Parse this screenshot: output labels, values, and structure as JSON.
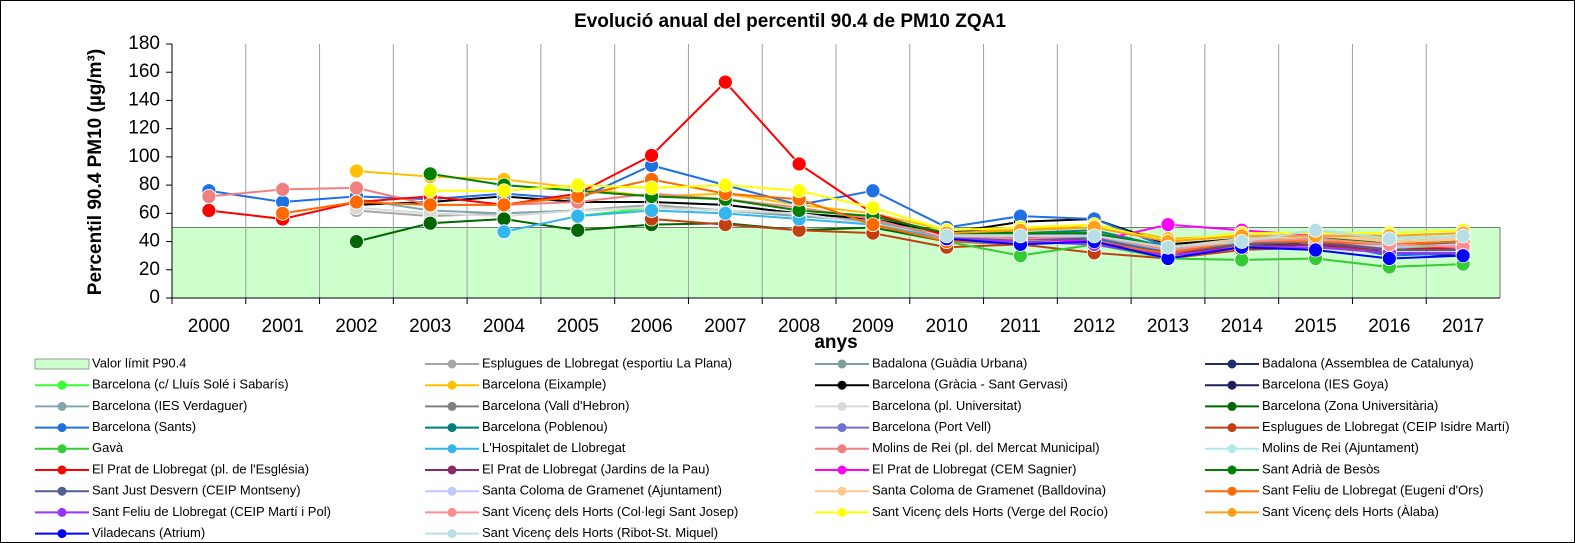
{
  "chart_data": {
    "type": "line",
    "title": "Evolució anual del percentil 90.4 de PM10 ZQA1",
    "x_label": "anys",
    "y_label": "Percentil 90.4 PM10 (µg/m³)",
    "categories": [
      "2000",
      "2001",
      "2002",
      "2003",
      "2004",
      "2005",
      "2006",
      "2007",
      "2008",
      "2009",
      "2010",
      "2011",
      "2012",
      "2013",
      "2014",
      "2015",
      "2016",
      "2017"
    ],
    "ylim": [
      0,
      180
    ],
    "yticks": [
      0,
      20,
      40,
      60,
      80,
      100,
      120,
      140,
      160,
      180
    ],
    "series": [
      {
        "name": "Valor límit P90.4",
        "type": "area",
        "color": "#ccffcc",
        "values": [
          50,
          50,
          50,
          50,
          50,
          50,
          50,
          50,
          50,
          50,
          50,
          50,
          50,
          50,
          50,
          50,
          50,
          50
        ]
      },
      {
        "name": "Esplugues de Llobregat (esportiu La Plana)",
        "color": "#a6a6a6",
        "values": [
          null,
          null,
          62,
          58,
          60,
          62,
          66,
          62,
          58,
          55,
          42,
          40,
          40,
          30,
          36,
          38,
          36,
          38
        ]
      },
      {
        "name": "Badalona (Guàdia Urbana)",
        "color": "#7f9f9f",
        "values": [
          null,
          null,
          null,
          null,
          null,
          null,
          null,
          null,
          null,
          null,
          44,
          44,
          44,
          36,
          40,
          42,
          38,
          38
        ]
      },
      {
        "name": "Badalona (Assemblea de Catalunya)",
        "color": "#1f2a6e",
        "values": [
          null,
          null,
          null,
          null,
          null,
          null,
          null,
          null,
          null,
          null,
          42,
          44,
          46,
          32,
          38,
          40,
          34,
          36
        ]
      },
      {
        "name": "Barcelona (c/ Lluís Solé i Sabarís)",
        "color": "#33ff33",
        "values": [
          null,
          null,
          null,
          null,
          null,
          58,
          64,
          62,
          60,
          56,
          44,
          40,
          42,
          34,
          38,
          40,
          36,
          36
        ]
      },
      {
        "name": "Barcelona (Eixample)",
        "color": "#ffc000",
        "values": [
          null,
          null,
          90,
          86,
          84,
          78,
          72,
          74,
          66,
          60,
          48,
          48,
          52,
          42,
          44,
          44,
          42,
          44
        ]
      },
      {
        "name": "Barcelona (Gràcia - Sant Gervasi)",
        "color": "#000000",
        "values": [
          null,
          null,
          66,
          68,
          72,
          68,
          68,
          66,
          60,
          56,
          46,
          54,
          56,
          38,
          42,
          44,
          40,
          42
        ]
      },
      {
        "name": "Barcelona (IES Goya)",
        "color": "#1f1f5f",
        "values": [
          null,
          null,
          null,
          null,
          null,
          null,
          null,
          null,
          null,
          null,
          48,
          46,
          44,
          34,
          38,
          38,
          32,
          30
        ]
      },
      {
        "name": "Barcelona (IES Verdaguer)",
        "color": "#7fa7b0",
        "values": [
          null,
          null,
          70,
          62,
          60,
          62,
          64,
          62,
          58,
          54,
          44,
          44,
          44,
          34,
          38,
          40,
          34,
          34
        ]
      },
      {
        "name": "Barcelona (Vall d'Hebron)",
        "color": "#7f7f7f",
        "values": [
          null,
          null,
          null,
          null,
          null,
          null,
          null,
          null,
          null,
          null,
          40,
          38,
          40,
          30,
          36,
          38,
          36,
          39
        ]
      },
      {
        "name": "Barcelona (pl. Universitat)",
        "color": "#d9d9d9",
        "values": [
          null,
          null,
          64,
          60,
          58,
          62,
          64,
          62,
          60,
          52,
          44,
          42,
          42,
          34,
          40,
          46,
          40,
          42
        ]
      },
      {
        "name": "Barcelona (Zona Universitària)",
        "color": "#006600",
        "values": [
          null,
          null,
          40,
          53,
          56,
          48,
          52,
          53,
          48,
          50,
          40,
          42,
          44,
          30,
          36,
          38,
          36,
          38
        ]
      },
      {
        "name": "Barcelona (Sants)",
        "color": "#1f6fe5",
        "values": [
          76,
          68,
          72,
          70,
          74,
          70,
          94,
          80,
          66,
          76,
          50,
          58,
          56,
          36,
          40,
          40,
          30,
          32
        ]
      },
      {
        "name": "Barcelona (Poblenou)",
        "color": "#007f7f",
        "values": [
          null,
          null,
          null,
          null,
          null,
          null,
          null,
          null,
          null,
          null,
          46,
          46,
          48,
          36,
          40,
          42,
          38,
          38
        ]
      },
      {
        "name": "Barcelona (Port Vell)",
        "color": "#6f6fcf",
        "values": [
          null,
          null,
          null,
          null,
          null,
          null,
          null,
          null,
          null,
          null,
          42,
          44,
          46,
          36,
          40,
          40,
          34,
          36
        ]
      },
      {
        "name": "Esplugues de Llobregat (CEIP Isidre Martí)",
        "color": "#c0400f",
        "values": [
          null,
          null,
          null,
          null,
          null,
          null,
          56,
          52,
          48,
          46,
          36,
          38,
          32,
          28,
          34,
          36,
          34,
          34
        ]
      },
      {
        "name": "Gavà",
        "color": "#33cc33",
        "values": [
          null,
          null,
          null,
          null,
          null,
          null,
          null,
          null,
          null,
          null,
          40,
          30,
          38,
          28,
          27,
          28,
          22,
          24
        ]
      },
      {
        "name": "L'Hospitalet de Llobregat",
        "color": "#33b5ee",
        "values": [
          null,
          null,
          null,
          null,
          47,
          58,
          62,
          60,
          56,
          52,
          42,
          44,
          42,
          34,
          38,
          40,
          36,
          38
        ]
      },
      {
        "name": "Molins de Rei (pl. del Mercat Municipal)",
        "color": "#f08080",
        "values": [
          72,
          77,
          78,
          66,
          66,
          68,
          74,
          70,
          64,
          56,
          42,
          42,
          40,
          32,
          38,
          40,
          36,
          38
        ]
      },
      {
        "name": "Molins de Rei (Ajuntament)",
        "color": "#b0e8e8",
        "values": [
          null,
          null,
          null,
          null,
          null,
          null,
          null,
          null,
          null,
          null,
          44,
          46,
          46,
          36,
          42,
          48,
          44,
          42
        ]
      },
      {
        "name": "El Prat de Llobregat (pl. de l'Església)",
        "color": "#ff0000",
        "values": [
          62,
          56,
          68,
          72,
          66,
          74,
          101,
          153,
          95,
          60,
          44,
          44,
          40,
          30,
          38,
          40,
          34,
          36
        ]
      },
      {
        "name": "El Prat de Llobregat (Jardins de la Pau)",
        "color": "#8b2a6b",
        "values": [
          null,
          null,
          null,
          null,
          null,
          null,
          null,
          null,
          null,
          null,
          40,
          40,
          38,
          30,
          36,
          38,
          34,
          34
        ]
      },
      {
        "name": "El Prat de Llobregat (CEM Sagnier)",
        "color": "#ff00ff",
        "values": [
          null,
          null,
          null,
          null,
          null,
          null,
          null,
          null,
          null,
          null,
          44,
          42,
          40,
          52,
          48,
          44,
          38,
          40
        ]
      },
      {
        "name": "Sant Adrià de Besòs",
        "color": "#008000",
        "values": [
          null,
          null,
          null,
          88,
          80,
          76,
          72,
          70,
          62,
          58,
          46,
          46,
          46,
          36,
          42,
          44,
          38,
          40
        ]
      },
      {
        "name": "Sant Just Desvern (CEIP Montseny)",
        "color": "#4f5f8f",
        "values": [
          null,
          null,
          null,
          null,
          null,
          null,
          null,
          null,
          null,
          null,
          42,
          42,
          42,
          32,
          38,
          40,
          34,
          34
        ]
      },
      {
        "name": "Santa Coloma de Gramenet (Ajuntament)",
        "color": "#c0c8ff",
        "values": [
          null,
          null,
          null,
          null,
          null,
          null,
          null,
          null,
          null,
          null,
          44,
          44,
          44,
          34,
          40,
          42,
          36,
          38
        ]
      },
      {
        "name": "Santa Coloma de Gramenet (Balldovina)",
        "color": "#ffc890",
        "values": [
          null,
          null,
          null,
          null,
          null,
          null,
          null,
          null,
          null,
          null,
          44,
          44,
          44,
          36,
          42,
          44,
          40,
          42
        ]
      },
      {
        "name": "Sant Feliu de Llobregat (Eugeni d'Ors)",
        "color": "#ff6a00",
        "values": [
          null,
          60,
          68,
          66,
          66,
          72,
          84,
          74,
          70,
          52,
          40,
          40,
          38,
          32,
          40,
          40,
          38,
          40
        ]
      },
      {
        "name": "Sant Feliu de Llobregat (CEIP Martí i Pol)",
        "color": "#9933ff",
        "values": [
          null,
          null,
          null,
          null,
          null,
          null,
          null,
          null,
          null,
          null,
          42,
          40,
          38,
          30,
          36,
          36,
          32,
          32
        ]
      },
      {
        "name": "Sant Vicenç dels Horts (Col·legi Sant Josep)",
        "color": "#ff8c8c",
        "values": [
          null,
          null,
          null,
          null,
          null,
          null,
          null,
          null,
          null,
          null,
          44,
          42,
          44,
          34,
          40,
          42,
          38,
          36
        ]
      },
      {
        "name": "Sant Vicenç dels Horts (Verge del Rocío)",
        "color": "#ffff00",
        "values": [
          null,
          null,
          null,
          76,
          76,
          80,
          78,
          80,
          76,
          64,
          48,
          50,
          52,
          40,
          46,
          46,
          46,
          48
        ]
      },
      {
        "name": "Sant Vicenç dels Horts (Àlaba)",
        "color": "#ff9f1a",
        "values": [
          null,
          null,
          null,
          null,
          null,
          null,
          null,
          null,
          null,
          null,
          46,
          48,
          50,
          40,
          44,
          44,
          44,
          46
        ]
      },
      {
        "name": "Viladecans (Atrium)",
        "color": "#0000ff",
        "values": [
          null,
          null,
          null,
          null,
          null,
          null,
          null,
          null,
          null,
          null,
          42,
          38,
          40,
          28,
          36,
          34,
          28,
          30
        ]
      },
      {
        "name": "Sant Vicenç  dels Horts (Ribot-St. Miquel)",
        "color": "#b8dfe6",
        "values": [
          null,
          null,
          null,
          null,
          null,
          null,
          null,
          null,
          null,
          null,
          44,
          44,
          44,
          36,
          40,
          48,
          42,
          44
        ]
      }
    ]
  }
}
